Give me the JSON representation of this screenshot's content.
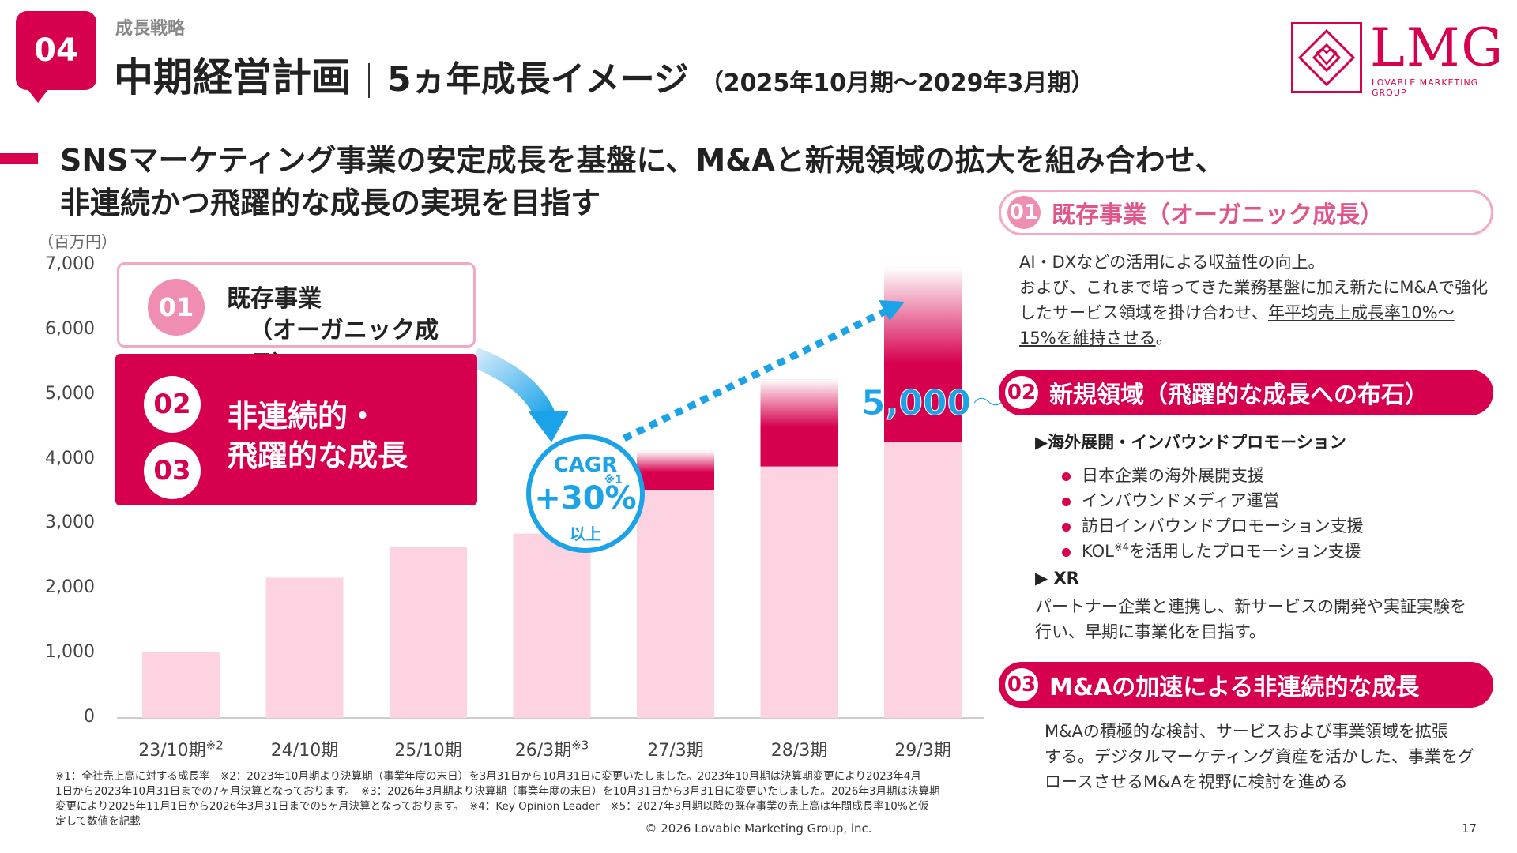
{
  "header": {
    "section_number": "04",
    "category": "成長戦略",
    "title": "中期経営計画",
    "subtitle": "5ヵ年成長イメージ",
    "period": "（2025年10月期～2029年3月期）"
  },
  "logo": {
    "text": "LMG",
    "tagline": "LOVABLE MARKETING GROUP"
  },
  "lead": {
    "line1": "SNSマーケティング事業の安定成長を基盤に、M&Aと新規領域の拡大を組み合わせ、",
    "line2": "非連続かつ飛躍的な成長の実現を目指す"
  },
  "chart_data": {
    "type": "bar",
    "unit_label": "（百万円）",
    "categories": [
      "23/10期",
      "24/10期",
      "25/10期",
      "26/3期",
      "27/3期",
      "28/3期",
      "29/3期"
    ],
    "category_notes": [
      "※2",
      "",
      "",
      "※3",
      "",
      "",
      ""
    ],
    "series": [
      {
        "values": [
          1020,
          2170,
          2640,
          2850,
          3530,
          3890,
          4270
        ]
      },
      {
        "values": [
          0,
          0,
          0,
          0,
          600,
          1350,
          2700
        ]
      }
    ],
    "ylim": [
      0,
      7000
    ],
    "yticks": [
      "0",
      "1,000",
      "2,000",
      "3,000",
      "4,000",
      "5,000",
      "6,000",
      "7,000"
    ],
    "grid": false,
    "colors": {
      "base": "#fdd3e1",
      "growth": "#d6004f"
    }
  },
  "callouts": {
    "c01": {
      "num": "01",
      "line1": "既存事業",
      "line2": "（オーガニック成長）"
    },
    "c02": {
      "num": "02"
    },
    "c03": {
      "num": "03"
    },
    "c23_line1": "非連続的・",
    "c23_line2": "飛躍的な成長"
  },
  "cagr": {
    "label": "CAGR",
    "note": "※1",
    "value": "+30%",
    "suffix": "以上"
  },
  "target_label": "5,000～",
  "right": {
    "p01": {
      "num": "01",
      "title": "既存事業（オーガニック成長）"
    },
    "p01_text": {
      "line1": "AI・DXなどの活用による収益性の向上。",
      "line2": "および、これまで培ってきた業務基盤に加え新たにM&Aで強化",
      "line3a": "したサービス領域を掛け合わせ、",
      "line3b": "年平均売上成長率10%～",
      "line4a": "15%を維持させる",
      "line4b": "。"
    },
    "p02": {
      "num": "02",
      "title": "新規領域（飛躍的な成長への布石）"
    },
    "p02_sub1": "▶海外展開・インバウンドプロモーション",
    "p02_bullets": {
      "b1": "日本企業の海外展開支援",
      "b2": "インバウンドメディア運営",
      "b3": "訪日インバウンドプロモーション支援",
      "b4a": "KOL",
      "b4note": "※4",
      "b4b": "を活用したプロモーション支援"
    },
    "p02_sub2": "▶ XR",
    "p02_xr": {
      "line1": "パートナー企業と連携し、新サービスの開発や実証実験を",
      "line2": "行い、早期に事業化を目指す。"
    },
    "p03": {
      "num": "03",
      "title": "M&Aの加速による非連続的な成長"
    },
    "p03_text": {
      "line1": "M&Aの積極的な検討、サービスおよび事業領域を拡張",
      "line2": "する。デジタルマーケティング資産を活かした、事業をグ",
      "line3": "ロースさせるM&Aを視野に検討を進める"
    }
  },
  "footnote": {
    "line1": "※1：全社売上高に対する成長率　※2：2023年10月期より決算期（事業年度の末日）を3月31日から10月31日に変更いたしました。2023年10月期は決算期変更により2023年4月",
    "line2": "1日から2023年10月31日までの7ヶ月決算となっております。　※3：2026年3月期より決算期（事業年度の末日）を10月31日から3月31日に変更いたしました。2026年3月期は決算期",
    "line3": "変更により2025年11月1日から2026年3月31日までの5ヶ月決算となっております。　※4：Key Opinion Leader　※5：2027年3月期以降の既存事業の売上高は年間成長率10%と仮",
    "line4": "定して数値を記載"
  },
  "copyright": "© 2026 Lovable Marketing Group, inc.",
  "page_number": "17"
}
